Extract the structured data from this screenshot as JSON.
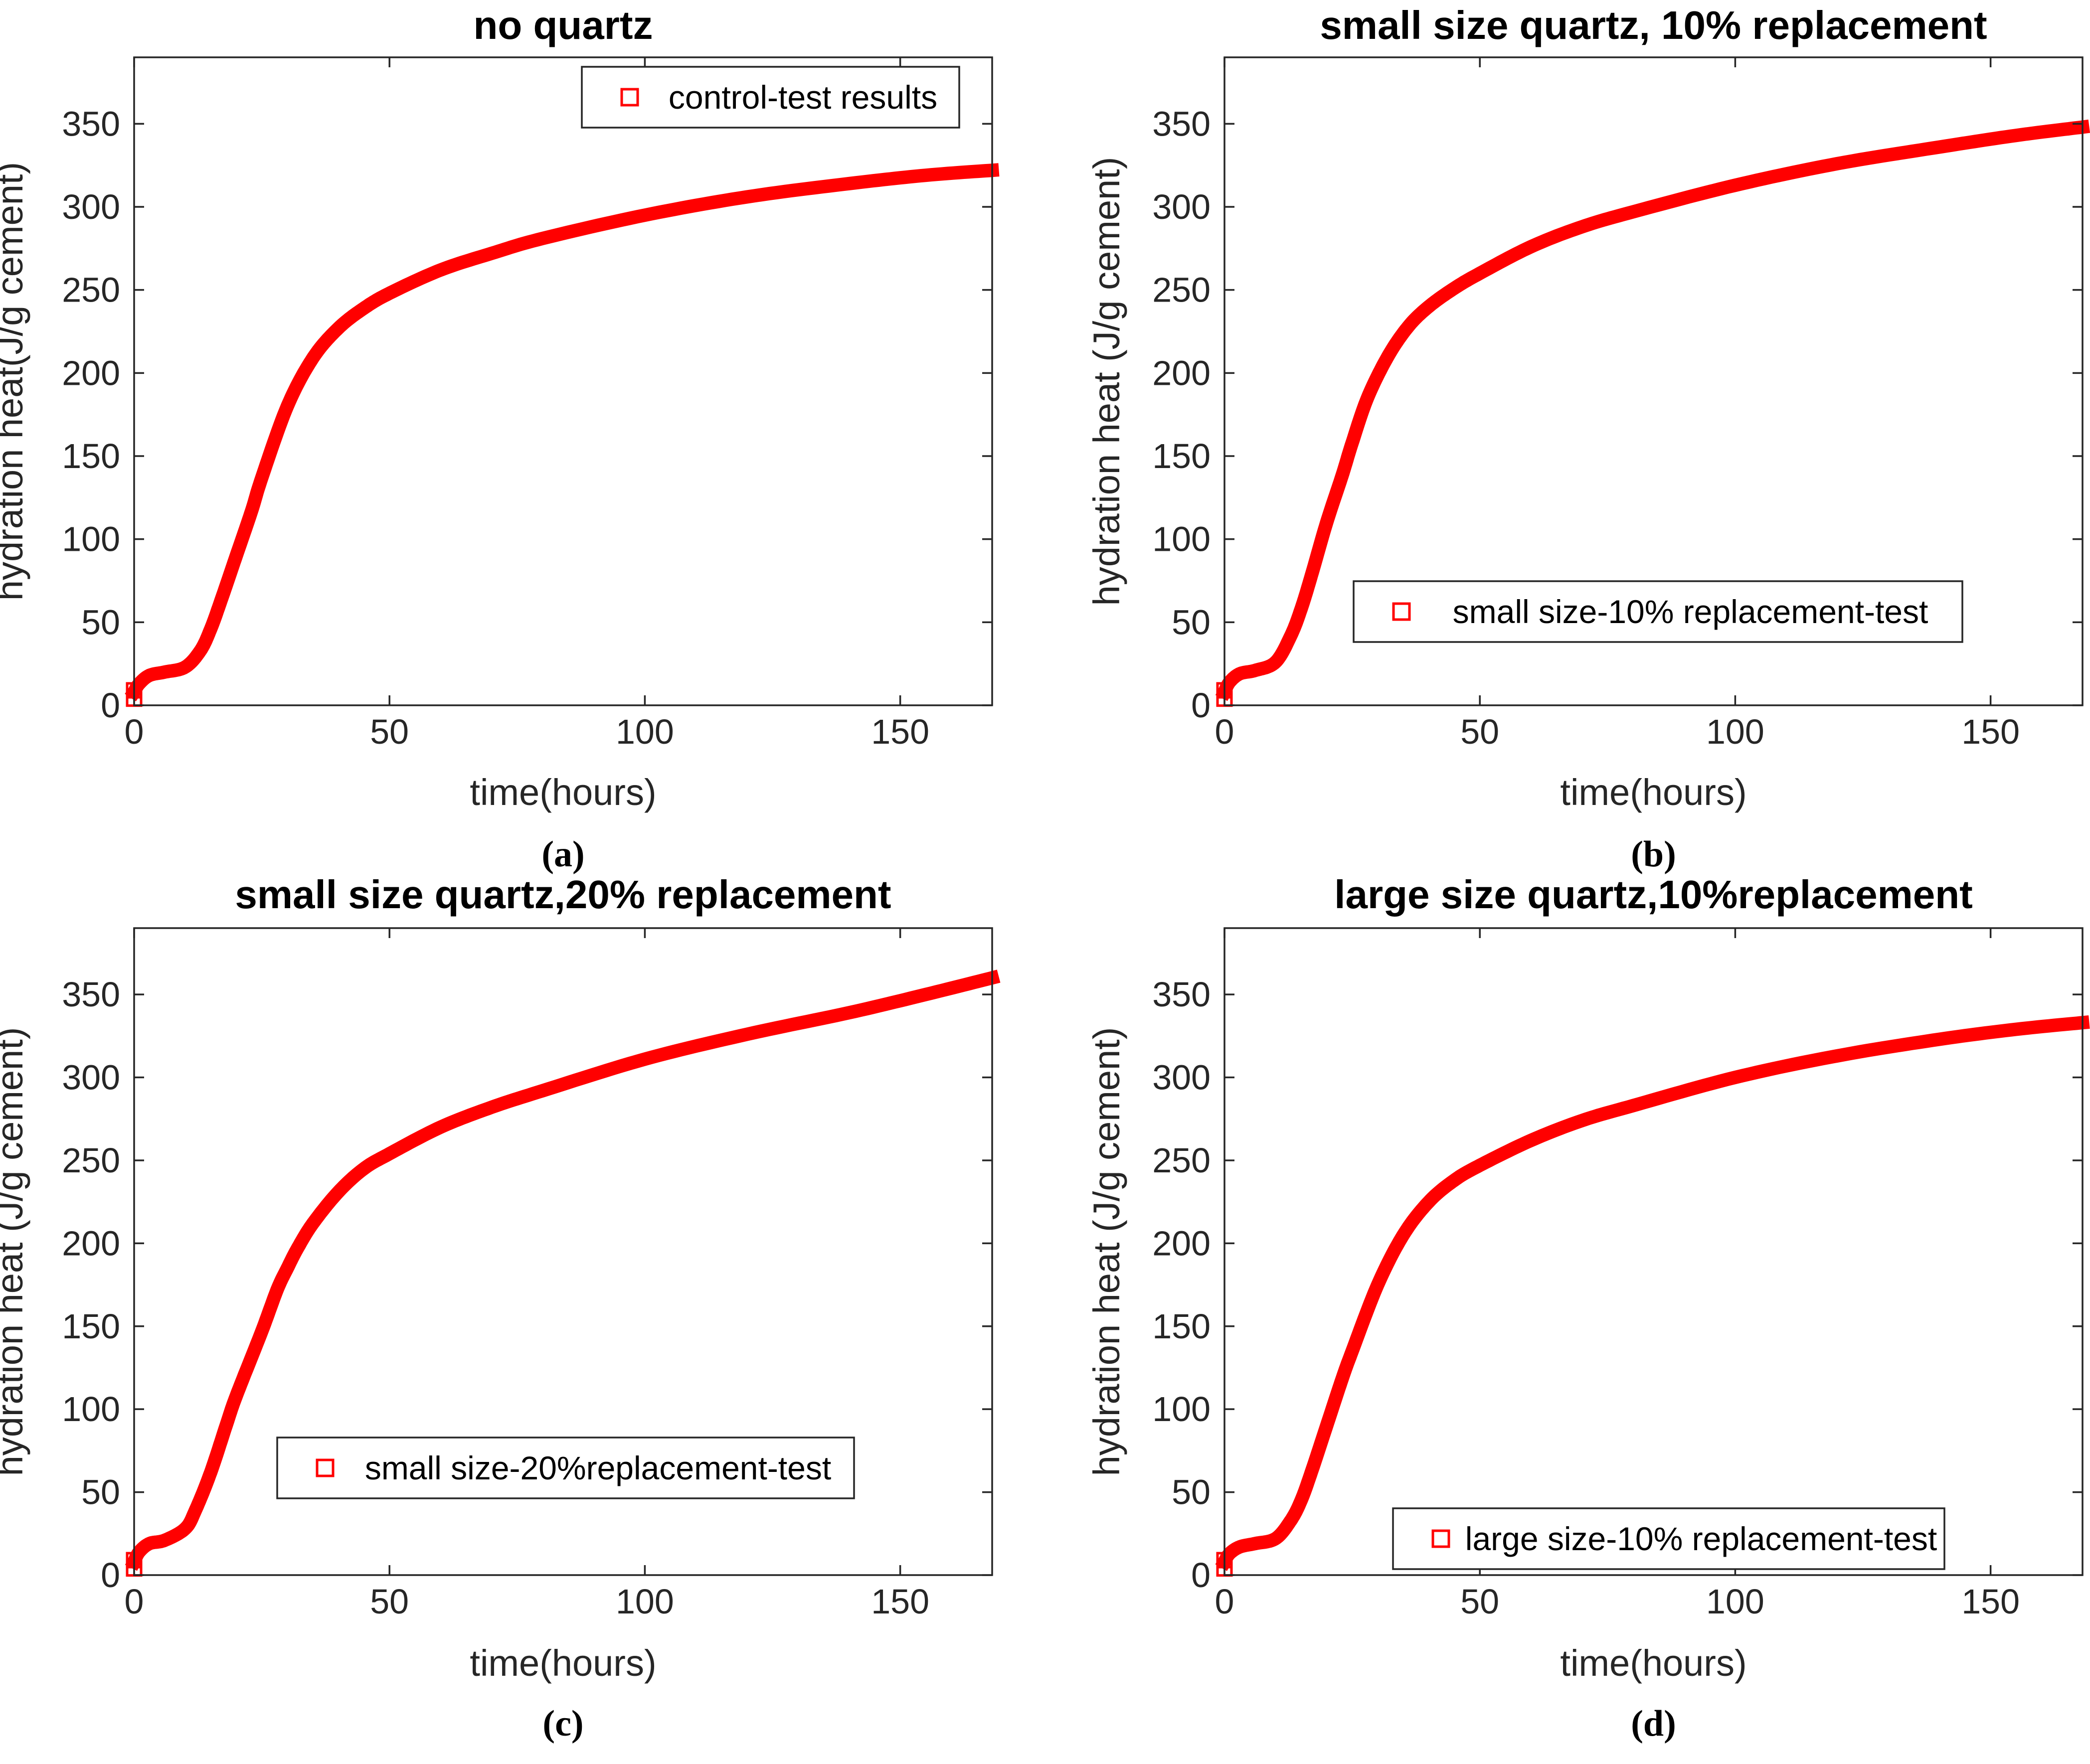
{
  "figure": {
    "background": "#ffffff",
    "curve_color": "#ff0000",
    "axis_color": "#262626",
    "marker_style": "open-square"
  },
  "chart_data": [
    {
      "type": "line",
      "panel": "a",
      "caption": "(a)",
      "title": "no quartz",
      "xlabel": "time(hours)",
      "ylabel": "hydration heat(J/g cement)",
      "legend": {
        "label": "control-test results",
        "position": "top-right"
      },
      "color": "#ff0000",
      "marker": "open-square",
      "xlim": [
        0,
        168
      ],
      "ylim": [
        0,
        390
      ],
      "xticks": [
        0,
        50,
        100,
        150
      ],
      "yticks": [
        0,
        50,
        100,
        150,
        200,
        250,
        300,
        350
      ],
      "x": [
        0,
        1,
        3,
        6,
        10,
        13,
        15,
        17,
        20,
        23,
        25,
        30,
        35,
        40,
        45,
        50,
        60,
        70,
        80,
        100,
        120,
        140,
        155,
        168
      ],
      "y": [
        8,
        13,
        18,
        20,
        23,
        33,
        46,
        63,
        90,
        117,
        137,
        180,
        209,
        227,
        239,
        248,
        262,
        272,
        281,
        295,
        306,
        314,
        319,
        322
      ],
      "start_markers": [
        {
          "x": 0,
          "y": 4
        },
        {
          "x": 0,
          "y": 9
        }
      ],
      "final_value": 322
    },
    {
      "type": "line",
      "panel": "b",
      "caption": "(b)",
      "title": "small size quartz, 10% replacement",
      "xlabel": "time(hours)",
      "ylabel": "hydration heat (J/g cement)",
      "legend": {
        "label": "small size-10% replacement-test",
        "position": "mid-left"
      },
      "color": "#ff0000",
      "marker": "open-square",
      "xlim": [
        0,
        168
      ],
      "ylim": [
        0,
        390
      ],
      "xticks": [
        0,
        50,
        100,
        150
      ],
      "yticks": [
        0,
        50,
        100,
        150,
        200,
        250,
        300,
        350
      ],
      "x": [
        0,
        1,
        3,
        6,
        10,
        13,
        15,
        17,
        20,
        23,
        25,
        28,
        32,
        36,
        40,
        45,
        50,
        60,
        70,
        80,
        100,
        120,
        140,
        155,
        168
      ],
      "y": [
        8,
        14,
        19,
        21,
        26,
        42,
        58,
        78,
        110,
        138,
        158,
        185,
        210,
        228,
        240,
        251,
        260,
        276,
        288,
        297,
        313,
        326,
        336,
        343,
        348
      ],
      "start_markers": [
        {
          "x": 0,
          "y": 4
        },
        {
          "x": 0,
          "y": 9
        }
      ],
      "final_value": 348
    },
    {
      "type": "line",
      "panel": "c",
      "caption": "(c)",
      "title": "small size quartz,20% replacement",
      "xlabel": "time(hours)",
      "ylabel": "hydration heat (J/g cement)",
      "legend": {
        "label": "small size-20%replacement-test",
        "position": "lower-middle"
      },
      "color": "#ff0000",
      "marker": "open-square",
      "xlim": [
        0,
        168
      ],
      "ylim": [
        0,
        390
      ],
      "xticks": [
        0,
        50,
        100,
        150
      ],
      "yticks": [
        0,
        50,
        100,
        150,
        200,
        250,
        300,
        350
      ],
      "x": [
        0,
        1,
        3,
        6,
        10,
        12,
        15,
        18,
        20,
        25,
        28,
        30,
        32,
        35,
        40,
        45,
        50,
        60,
        70,
        80,
        100,
        120,
        140,
        155,
        168
      ],
      "y": [
        8,
        14,
        19,
        21,
        28,
        39,
        62,
        90,
        108,
        147,
        172,
        185,
        197,
        212,
        231,
        245,
        254,
        270,
        282,
        292,
        311,
        326,
        339,
        350,
        360
      ],
      "start_markers": [
        {
          "x": 0,
          "y": 4
        },
        {
          "x": 0,
          "y": 9
        }
      ],
      "final_value": 360
    },
    {
      "type": "line",
      "panel": "d",
      "caption": "(d)",
      "title": "large size quartz,10%replacement",
      "xlabel": "time(hours)",
      "ylabel": "hydration heat (J/g cement)",
      "legend": {
        "label": "large size-10% replacement-test",
        "position": "bottom-middle"
      },
      "color": "#ff0000",
      "marker": "open-square",
      "xlim": [
        0,
        168
      ],
      "ylim": [
        0,
        390
      ],
      "xticks": [
        0,
        50,
        100,
        150
      ],
      "yticks": [
        0,
        50,
        100,
        150,
        200,
        250,
        300,
        350
      ],
      "x": [
        0,
        1,
        3,
        6,
        10,
        13,
        15,
        17,
        20,
        23,
        25,
        30,
        35,
        40,
        45,
        50,
        60,
        70,
        80,
        100,
        120,
        140,
        155,
        168
      ],
      "y": [
        8,
        13,
        17,
        19,
        22,
        33,
        45,
        62,
        90,
        118,
        135,
        175,
        205,
        225,
        238,
        247,
        262,
        274,
        283,
        300,
        313,
        323,
        329,
        333
      ],
      "start_markers": [
        {
          "x": 0,
          "y": 4
        },
        {
          "x": 0,
          "y": 9
        }
      ],
      "final_value": 333
    }
  ]
}
